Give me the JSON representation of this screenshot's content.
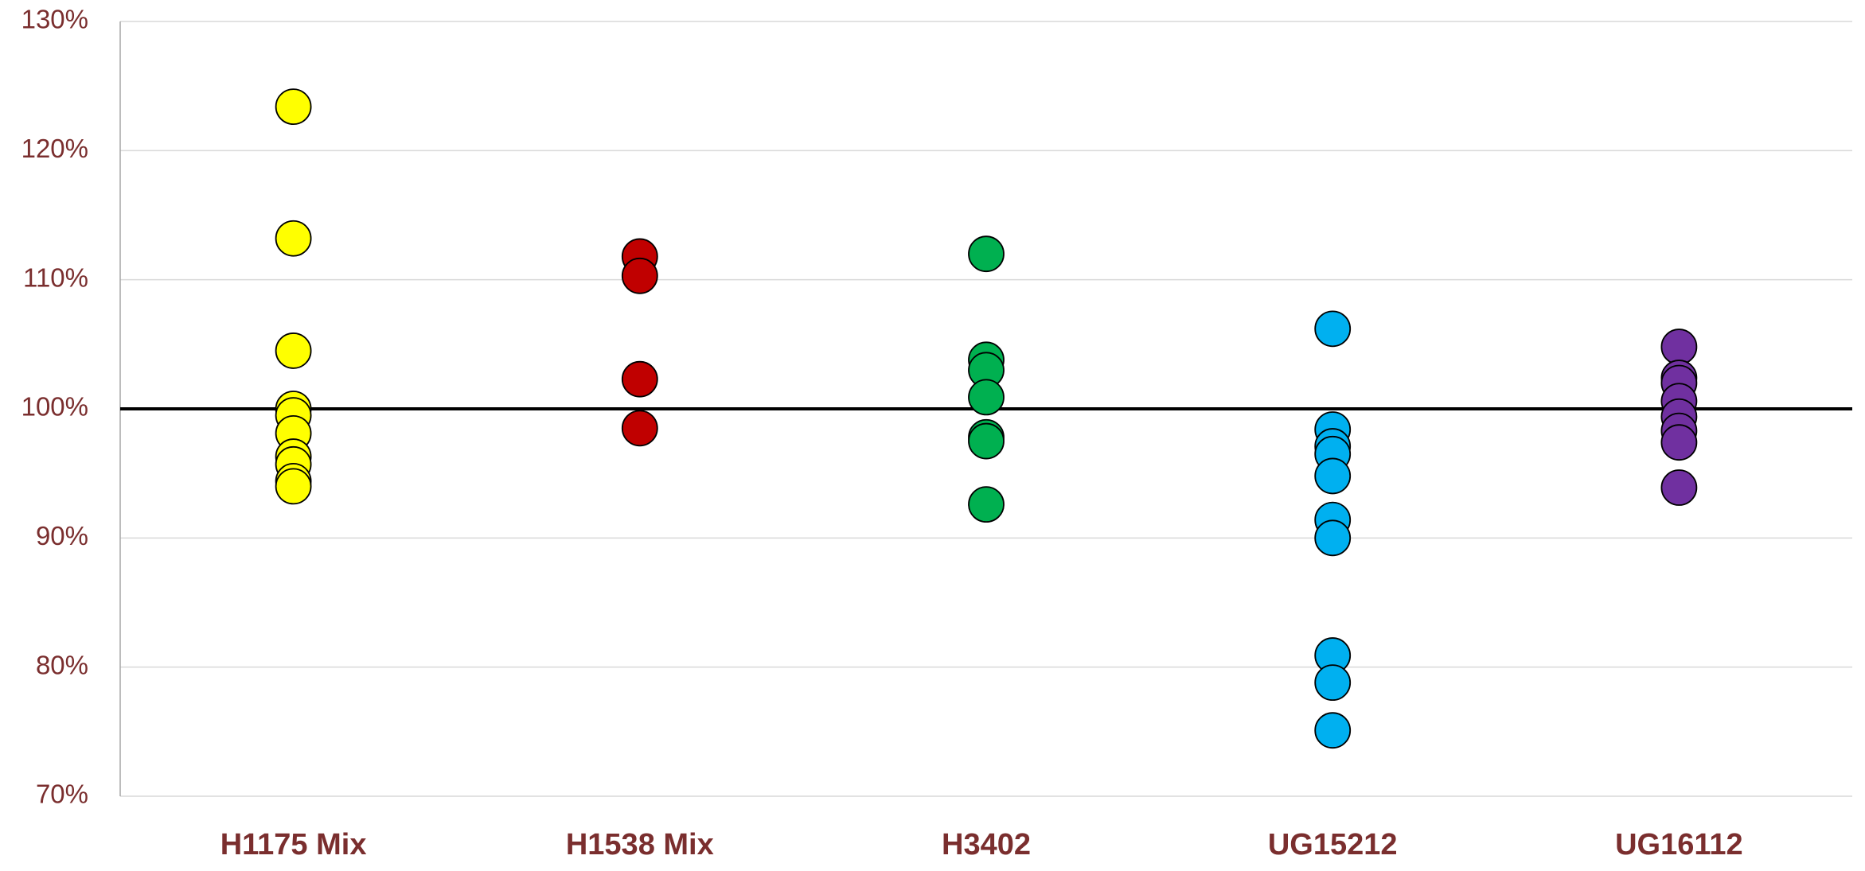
{
  "chart_data": {
    "type": "strip",
    "categories": [
      "H1175 Mix",
      "H1538 Mix",
      "H3402",
      "UG15212",
      "UG16112"
    ],
    "colors": [
      "#ffff00",
      "#c00000",
      "#00b050",
      "#00b0f0",
      "#7030a0"
    ],
    "values": [
      [
        123.4,
        113.2,
        104.5,
        100.0,
        99.5,
        98.1,
        96.3,
        95.7,
        94.4,
        94.0
      ],
      [
        111.8,
        110.3,
        102.3,
        98.5
      ],
      [
        112.0,
        103.8,
        103.0,
        100.9,
        97.8,
        97.5,
        92.6
      ],
      [
        106.2,
        98.4,
        97.1,
        96.5,
        94.8,
        91.4,
        90.0,
        80.9,
        78.8,
        75.1
      ],
      [
        104.8,
        102.4,
        102.0,
        100.6,
        99.4,
        98.3,
        97.4,
        93.9
      ]
    ],
    "reference_line": 100,
    "ylim": [
      70,
      130
    ],
    "yticks": [
      {
        "value": 70,
        "label": "70%"
      },
      {
        "value": 80,
        "label": "80%"
      },
      {
        "value": 90,
        "label": "90%"
      },
      {
        "value": 100,
        "label": "100%"
      },
      {
        "value": 110,
        "label": "110%"
      },
      {
        "value": 120,
        "label": "120%"
      },
      {
        "value": 130,
        "label": "130%"
      }
    ],
    "grid": true
  }
}
